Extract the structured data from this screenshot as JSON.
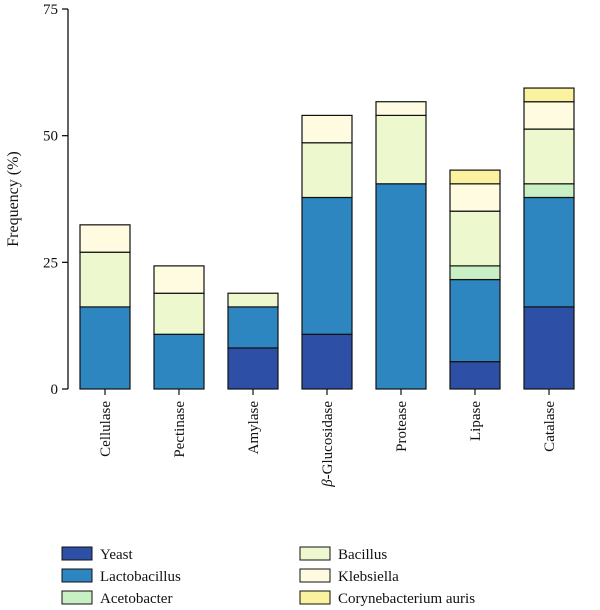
{
  "chart_data": {
    "type": "bar",
    "stacked": true,
    "title": "",
    "xlabel": "",
    "ylabel": "Frequency (%)",
    "ylim": [
      0,
      75
    ],
    "yticks": [
      0,
      25,
      50,
      75
    ],
    "categories": [
      {
        "prefix": "",
        "name": "Cellulase"
      },
      {
        "prefix": "",
        "name": "Pectinase"
      },
      {
        "prefix": "",
        "name": "Amylase"
      },
      {
        "prefix": "β",
        "name": "-Glucosidase"
      },
      {
        "prefix": "",
        "name": "Protease"
      },
      {
        "prefix": "",
        "name": "Lipase"
      },
      {
        "prefix": "",
        "name": "Catalase"
      }
    ],
    "series": [
      {
        "name": "Yeast",
        "color": "#2d4fa6",
        "values": [
          0,
          0,
          8.1,
          10.8,
          0,
          5.4,
          16.2
        ]
      },
      {
        "name": "Lactobacillus",
        "color": "#2e86c1",
        "values": [
          16.2,
          10.8,
          8.1,
          27.0,
          40.5,
          16.2,
          21.6
        ]
      },
      {
        "name": "Acetobacter",
        "color": "#c9efc4",
        "values": [
          0,
          0,
          0,
          0,
          0,
          2.7,
          2.7
        ]
      },
      {
        "name": "Bacillus",
        "color": "#eef8cf",
        "values": [
          10.8,
          8.1,
          2.7,
          10.8,
          13.5,
          10.8,
          10.8
        ]
      },
      {
        "name": "Klebsiella",
        "color": "#fefbe0",
        "values": [
          5.4,
          5.4,
          0,
          5.4,
          2.7,
          5.4,
          5.4
        ]
      },
      {
        "name": "Corynebacterium auris",
        "color": "#fbf2a0",
        "values": [
          0,
          0,
          0,
          0,
          0,
          2.7,
          2.7
        ]
      }
    ],
    "legend_position": "bottom",
    "legend_columns": [
      [
        "Yeast",
        "Lactobacillus",
        "Acetobacter"
      ],
      [
        "Bacillus",
        "Klebsiella",
        "Corynebacterium auris"
      ]
    ]
  }
}
